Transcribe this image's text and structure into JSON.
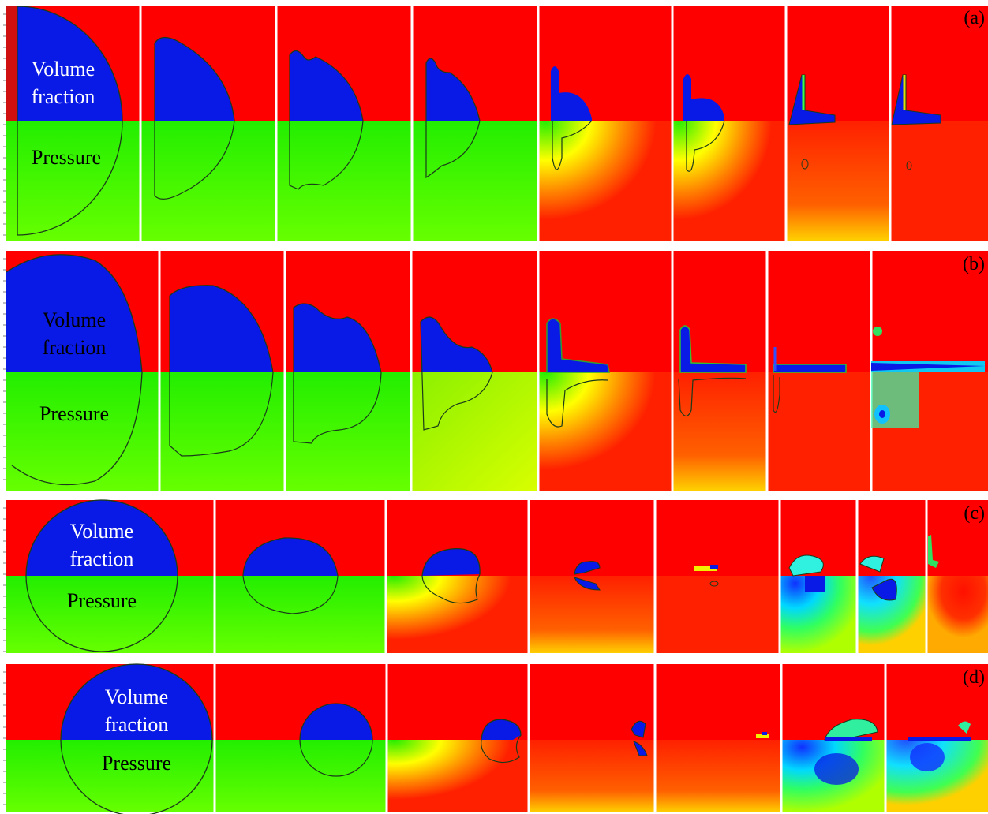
{
  "rows": [
    {
      "id": "a",
      "tag": "(a)",
      "vf_line1": "Volume",
      "vf_line2": "fraction",
      "p_label": "Pressure"
    },
    {
      "id": "b",
      "tag": "(b)",
      "vf_line1": "Volume",
      "vf_line2": "fraction",
      "p_label": "Pressure"
    },
    {
      "id": "c",
      "tag": "(c)",
      "vf_line1": "Volume",
      "vf_line2": "fraction",
      "p_label": "Pressure"
    },
    {
      "id": "d",
      "tag": "(d)",
      "vf_line1": "Volume",
      "vf_line2": "fraction",
      "p_label": "Pressure"
    }
  ],
  "colors": {
    "liquid": "#ff0000",
    "gas": "#0a1ae6",
    "pressure_mid": "#22ee00",
    "pressure_high": "#ff2000",
    "pressure_yellow": "#f3f200",
    "pressure_low": "#00bfff",
    "interface": "#1a3a1a"
  }
}
